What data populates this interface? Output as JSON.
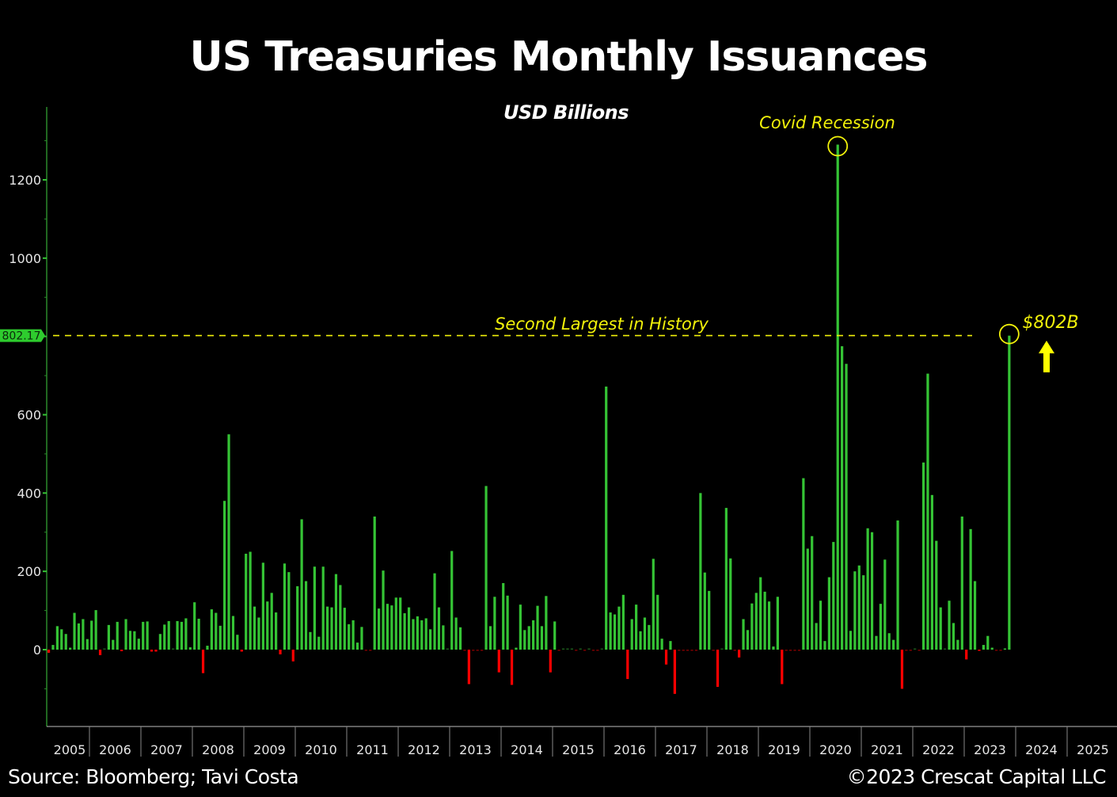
{
  "chart_data": {
    "type": "bar",
    "title": "US Treasuries Monthly Issuances",
    "subtitle": "USD Billions",
    "xlabel": "",
    "ylabel": "USD Billions",
    "ylim": [
      -200,
      1320
    ],
    "yticks": [
      0,
      200,
      400,
      600,
      800,
      1000,
      1200
    ],
    "ytick_labels": [
      "0",
      "200",
      "400",
      "600",
      "1000",
      "1200"
    ],
    "ytick_values": [
      0,
      200,
      400,
      600,
      1000,
      1200
    ],
    "xtick_labels": [
      "2005",
      "2006",
      "2007",
      "2008",
      "2009",
      "2010",
      "2011",
      "2012",
      "2013",
      "2014",
      "2015",
      "2016",
      "2017",
      "2018",
      "2019",
      "2020",
      "2021",
      "2022",
      "2023",
      "2024",
      "2025"
    ],
    "x_start": "2005-03",
    "frequency": "monthly",
    "grid": false,
    "positive_color": "#35c435",
    "negative_color": "#ff0000",
    "last_value_label": "802.17",
    "reference_line": {
      "value": 802.17,
      "label": "Second Largest in History",
      "color": "#f2f20a"
    },
    "annotations": [
      {
        "text": "Covid Recession",
        "value": 1290
      },
      {
        "text": "$802B",
        "value": 802
      }
    ],
    "values": [
      -8,
      12,
      60,
      52,
      40,
      5,
      94,
      67,
      78,
      27,
      74,
      101,
      -14,
      2,
      63,
      25,
      71,
      -4,
      78,
      48,
      47,
      28,
      71,
      72,
      -5,
      -5,
      40,
      64,
      73,
      2,
      73,
      71,
      80,
      6,
      121,
      79,
      -60,
      10,
      103,
      94,
      61,
      380,
      550,
      86,
      38,
      -5,
      245,
      250,
      110,
      82,
      222,
      123,
      145,
      95,
      -12,
      220,
      198,
      -30,
      162,
      333,
      175,
      45,
      212,
      33,
      212,
      110,
      108,
      193,
      165,
      107,
      65,
      75,
      18,
      58,
      -2,
      -2,
      340,
      105,
      202,
      117,
      113,
      133,
      133,
      93,
      108,
      78,
      85,
      75,
      80,
      52,
      195,
      108,
      62,
      0,
      252,
      82,
      57,
      -1,
      -88,
      -2,
      -1,
      -2,
      418,
      60,
      135,
      -58,
      170,
      138,
      -90,
      5,
      115,
      50,
      60,
      75,
      112,
      60,
      137,
      -58,
      72,
      -2,
      2,
      1,
      0,
      -1,
      0,
      -2,
      0,
      -1,
      -1,
      2,
      672,
      95,
      90,
      110,
      140,
      -75,
      78,
      115,
      47,
      82,
      63,
      232,
      140,
      28,
      -38,
      22,
      -113,
      -1,
      -2,
      -1,
      -2,
      -1,
      400,
      197,
      150,
      -1,
      -95,
      1,
      362,
      233,
      -1,
      -20,
      78,
      50,
      118,
      145,
      185,
      148,
      123,
      8,
      135,
      -88,
      -1,
      -2,
      -2,
      -1,
      438,
      258,
      290,
      68,
      125,
      22,
      185,
      275,
      1290,
      775,
      730,
      48,
      200,
      215,
      190,
      310,
      300,
      35,
      117,
      230,
      42,
      25,
      330,
      -100,
      -1,
      -1,
      2,
      -1,
      478,
      705,
      395,
      278,
      108,
      0,
      125,
      68,
      25,
      340,
      -25,
      308,
      175,
      -3,
      12,
      35,
      5,
      -2,
      -2,
      3,
      802
    ]
  },
  "text": {
    "title": "US Treasuries Monthly Issuances",
    "subtitle": "USD Billions",
    "covid": "Covid Recession",
    "second": "Second Largest in History",
    "value_802": "$802B",
    "last_value_tag": "802.17",
    "source": "Source: Bloomberg; Tavi Costa",
    "copyright": "©2023 Crescat Capital LLC"
  }
}
